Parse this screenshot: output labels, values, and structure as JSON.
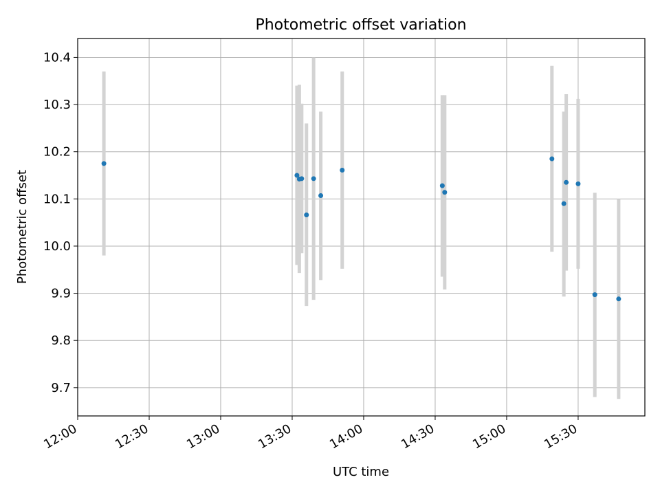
{
  "chart_data": {
    "type": "scatter",
    "title": "Photometric offset variation",
    "xlabel": "UTC time",
    "ylabel": "Photometric offset",
    "xlim": [
      "12:00",
      "15:58"
    ],
    "ylim": [
      9.64,
      10.44
    ],
    "x_ticks": [
      "12:00",
      "12:30",
      "13:00",
      "13:30",
      "14:00",
      "14:30",
      "15:00",
      "15:30"
    ],
    "y_ticks": [
      9.7,
      9.8,
      9.9,
      10.0,
      10.1,
      10.2,
      10.3,
      10.4
    ],
    "y_tick_labels": [
      "9.7",
      "9.8",
      "9.9",
      "10.0",
      "10.1",
      "10.2",
      "10.3",
      "10.4"
    ],
    "grid": true,
    "point_color": "#1f77b4",
    "errorbar_color": "#d3d3d3",
    "points": [
      {
        "x": "12:11",
        "y": 10.175,
        "y_low": 9.98,
        "y_high": 10.37
      },
      {
        "x": "13:32",
        "y": 10.15,
        "y_low": 9.96,
        "y_high": 10.34
      },
      {
        "x": "13:33",
        "y": 10.142,
        "y_low": 9.943,
        "y_high": 10.342
      },
      {
        "x": "13:34",
        "y": 10.143,
        "y_low": 9.985,
        "y_high": 10.302
      },
      {
        "x": "13:36",
        "y": 10.066,
        "y_low": 9.873,
        "y_high": 10.26
      },
      {
        "x": "13:39",
        "y": 10.143,
        "y_low": 9.886,
        "y_high": 10.4
      },
      {
        "x": "13:42",
        "y": 10.107,
        "y_low": 9.928,
        "y_high": 10.285
      },
      {
        "x": "13:51",
        "y": 10.161,
        "y_low": 9.952,
        "y_high": 10.37
      },
      {
        "x": "14:33",
        "y": 10.128,
        "y_low": 9.935,
        "y_high": 10.32
      },
      {
        "x": "14:34",
        "y": 10.114,
        "y_low": 9.908,
        "y_high": 10.32
      },
      {
        "x": "15:19",
        "y": 10.185,
        "y_low": 9.988,
        "y_high": 10.382
      },
      {
        "x": "15:24",
        "y": 10.09,
        "y_low": 9.893,
        "y_high": 10.285
      },
      {
        "x": "15:25",
        "y": 10.135,
        "y_low": 9.948,
        "y_high": 10.322
      },
      {
        "x": "15:30",
        "y": 10.132,
        "y_low": 9.952,
        "y_high": 10.312
      },
      {
        "x": "15:37",
        "y": 9.897,
        "y_low": 9.68,
        "y_high": 10.113
      },
      {
        "x": "15:47",
        "y": 9.888,
        "y_low": 9.676,
        "y_high": 10.1
      }
    ]
  }
}
